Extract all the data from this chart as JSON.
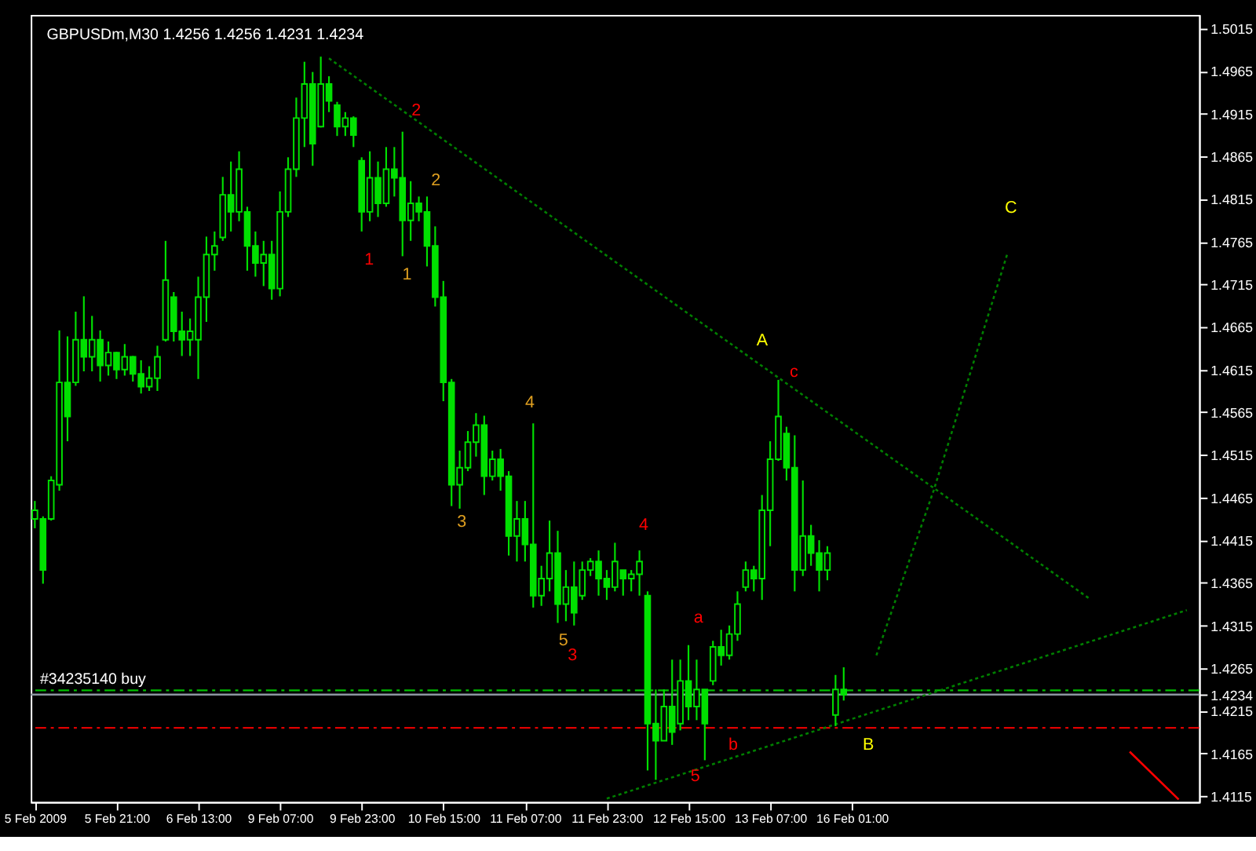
{
  "chart_data": {
    "type": "candlestick",
    "title": "GBPUSDm,M30  1.4256 1.4256 1.4231 1.4234",
    "categories": [
      "5 Feb 2009",
      null,
      null,
      null,
      null,
      null,
      null,
      null,
      null,
      null,
      "5 Feb 21:00",
      null,
      null,
      null,
      null,
      null,
      null,
      null,
      null,
      null,
      "6 Feb 13:00",
      null,
      null,
      null,
      null,
      null,
      null,
      null,
      null,
      null,
      "9 Feb 07:00",
      null,
      null,
      null,
      null,
      null,
      null,
      null,
      null,
      null,
      "9 Feb 23:00",
      null,
      null,
      null,
      null,
      null,
      null,
      null,
      null,
      null,
      "10 Feb 15:00",
      null,
      null,
      null,
      null,
      null,
      null,
      null,
      null,
      null,
      "11 Feb 07:00",
      null,
      null,
      null,
      null,
      null,
      null,
      null,
      null,
      null,
      "11 Feb 23:00",
      null,
      null,
      null,
      null,
      null,
      null,
      null,
      null,
      null,
      "12 Feb 15:00",
      null,
      null,
      null,
      null,
      null,
      null,
      null,
      null,
      null,
      "13 Feb 07:00",
      null,
      null,
      null,
      null,
      null,
      null,
      null,
      null,
      null,
      "16 Feb 01:00",
      null,
      null,
      null,
      null,
      null,
      null,
      null,
      null,
      null,
      null,
      null,
      null,
      null,
      null,
      null,
      null,
      null,
      null,
      null,
      null,
      null,
      null,
      null,
      null,
      null,
      null,
      null,
      null,
      null,
      null,
      null,
      null,
      null,
      null,
      null,
      null,
      null,
      null,
      null,
      null,
      null,
      null
    ],
    "ohlc": [
      [
        1.444,
        1.4461,
        1.4429,
        1.445
      ],
      [
        1.444,
        1.4443,
        1.4364,
        1.438
      ],
      [
        1.444,
        1.449,
        1.4438,
        1.4485
      ],
      [
        1.448,
        1.4661,
        1.4473,
        1.46
      ],
      [
        1.46,
        1.4654,
        1.4531,
        1.456
      ],
      [
        1.46,
        1.4683,
        1.4596,
        1.465
      ],
      [
        1.465,
        1.4701,
        1.4613,
        1.463
      ],
      [
        1.463,
        1.4678,
        1.4613,
        1.465
      ],
      [
        1.465,
        1.4661,
        1.4601,
        1.462
      ],
      [
        1.462,
        1.4648,
        1.4608,
        1.4635
      ],
      [
        1.4635,
        1.4636,
        1.4604,
        1.4615
      ],
      [
        1.4615,
        1.4645,
        1.4608,
        1.463
      ],
      [
        1.463,
        1.4631,
        1.4601,
        1.461
      ],
      [
        1.461,
        1.4626,
        1.4587,
        1.4595
      ],
      [
        1.4595,
        1.4619,
        1.459,
        1.4605
      ],
      [
        1.4605,
        1.4643,
        1.459,
        1.463
      ],
      [
        1.465,
        1.4766,
        1.4648,
        1.472
      ],
      [
        1.47,
        1.4706,
        1.4648,
        1.466
      ],
      [
        1.466,
        1.4683,
        1.4631,
        1.465
      ],
      [
        1.465,
        1.4675,
        1.4631,
        1.466
      ],
      [
        1.465,
        1.4724,
        1.4604,
        1.47
      ],
      [
        1.47,
        1.4771,
        1.4671,
        1.475
      ],
      [
        1.475,
        1.4777,
        1.4731,
        1.476
      ],
      [
        1.477,
        1.4841,
        1.4766,
        1.482
      ],
      [
        1.482,
        1.4859,
        1.4777,
        1.48
      ],
      [
        1.48,
        1.4871,
        1.4789,
        1.485
      ],
      [
        1.48,
        1.4806,
        1.4731,
        1.476
      ],
      [
        1.476,
        1.4777,
        1.4724,
        1.474
      ],
      [
        1.474,
        1.4766,
        1.4713,
        1.475
      ],
      [
        1.475,
        1.4766,
        1.4697,
        1.471
      ],
      [
        1.471,
        1.4824,
        1.4701,
        1.48
      ],
      [
        1.48,
        1.4864,
        1.4794,
        1.485
      ],
      [
        1.485,
        1.4934,
        1.4841,
        1.491
      ],
      [
        1.491,
        1.4976,
        1.4876,
        1.495
      ],
      [
        1.495,
        1.4964,
        1.4854,
        1.488
      ],
      [
        1.49,
        1.4982,
        1.4899,
        1.495
      ],
      [
        1.495,
        1.4959,
        1.4917,
        1.493
      ],
      [
        1.4925,
        1.4929,
        1.4889,
        1.49
      ],
      [
        1.49,
        1.4917,
        1.4889,
        1.491
      ],
      [
        1.491,
        1.4912,
        1.4876,
        1.489
      ],
      [
        1.486,
        1.4864,
        1.4777,
        1.48
      ],
      [
        1.48,
        1.4871,
        1.4789,
        1.484
      ],
      [
        1.484,
        1.4859,
        1.4794,
        1.481
      ],
      [
        1.481,
        1.4876,
        1.4806,
        1.485
      ],
      [
        1.485,
        1.4876,
        1.4818,
        1.484
      ],
      [
        1.484,
        1.4894,
        1.4748,
        1.479
      ],
      [
        1.479,
        1.4836,
        1.4766,
        1.481
      ],
      [
        1.481,
        1.4818,
        1.4789,
        1.48
      ],
      [
        1.48,
        1.4818,
        1.4736,
        1.476
      ],
      [
        1.476,
        1.4783,
        1.4689,
        1.47
      ],
      [
        1.47,
        1.4719,
        1.4578,
        1.46
      ],
      [
        1.46,
        1.4604,
        1.4455,
        1.448
      ],
      [
        1.448,
        1.452,
        1.4452,
        1.45
      ],
      [
        1.45,
        1.4543,
        1.4496,
        1.453
      ],
      [
        1.453,
        1.4564,
        1.4513,
        1.455
      ],
      [
        1.455,
        1.4561,
        1.4468,
        1.449
      ],
      [
        1.449,
        1.452,
        1.4485,
        1.451
      ],
      [
        1.451,
        1.4522,
        1.4473,
        1.449
      ],
      [
        1.449,
        1.4496,
        1.4397,
        1.442
      ],
      [
        1.442,
        1.4461,
        1.439,
        1.444
      ],
      [
        1.444,
        1.4461,
        1.439,
        1.441
      ],
      [
        1.441,
        1.4552,
        1.4336,
        1.435
      ],
      [
        1.435,
        1.4385,
        1.4338,
        1.437
      ],
      [
        1.437,
        1.4438,
        1.4355,
        1.44
      ],
      [
        1.44,
        1.4426,
        1.4318,
        1.434
      ],
      [
        1.434,
        1.438,
        1.432,
        1.436
      ],
      [
        1.436,
        1.439,
        1.4315,
        1.433
      ],
      [
        1.435,
        1.439,
        1.4345,
        1.438
      ],
      [
        1.438,
        1.4394,
        1.4373,
        1.439
      ],
      [
        1.439,
        1.4403,
        1.435,
        1.437
      ],
      [
        1.437,
        1.438,
        1.4345,
        1.436
      ],
      [
        1.436,
        1.4412,
        1.4355,
        1.439
      ],
      [
        1.438,
        1.438,
        1.435,
        1.437
      ],
      [
        1.437,
        1.438,
        1.4355,
        1.4375
      ],
      [
        1.4375,
        1.4403,
        1.435,
        1.439
      ],
      [
        1.435,
        1.4355,
        1.4145,
        1.42
      ],
      [
        1.42,
        1.424,
        1.4134,
        1.418
      ],
      [
        1.418,
        1.424,
        1.418,
        1.422
      ],
      [
        1.422,
        1.4275,
        1.4175,
        1.419
      ],
      [
        1.42,
        1.4275,
        1.4192,
        1.425
      ],
      [
        1.425,
        1.4292,
        1.4204,
        1.422
      ],
      [
        1.422,
        1.4275,
        1.4204,
        1.424
      ],
      [
        1.424,
        1.424,
        1.4157,
        1.42
      ],
      [
        1.425,
        1.4297,
        1.4245,
        1.429
      ],
      [
        1.429,
        1.431,
        1.4268,
        1.428
      ],
      [
        1.428,
        1.4315,
        1.4275,
        1.4305
      ],
      [
        1.4305,
        1.4355,
        1.4297,
        1.434
      ],
      [
        1.436,
        1.439,
        1.4355,
        1.438
      ],
      [
        1.438,
        1.4385,
        1.4355,
        1.437
      ],
      [
        1.437,
        1.4468,
        1.4345,
        1.445
      ],
      [
        1.445,
        1.4531,
        1.4408,
        1.451
      ],
      [
        1.451,
        1.4603,
        1.4508,
        1.456
      ],
      [
        1.454,
        1.4548,
        1.4485,
        1.45
      ],
      [
        1.45,
        1.4538,
        1.4355,
        1.438
      ],
      [
        1.438,
        1.4485,
        1.4373,
        1.442
      ],
      [
        1.442,
        1.4433,
        1.4385,
        1.44
      ],
      [
        1.44,
        1.4415,
        1.4355,
        1.438
      ],
      [
        1.438,
        1.4408,
        1.4368,
        1.44
      ],
      [
        1.421,
        1.4257,
        1.4197,
        1.424
      ],
      [
        1.424,
        1.4266,
        1.4227,
        1.4234
      ],
      null,
      null,
      null,
      null,
      null,
      null,
      null,
      null,
      null,
      null,
      null,
      null,
      null,
      null,
      null,
      null,
      null,
      null,
      null,
      null,
      null,
      null,
      null,
      null,
      null,
      null,
      null,
      null,
      null,
      null,
      null,
      null,
      null,
      null,
      null,
      null,
      null,
      null,
      null,
      null,
      null,
      null,
      null
    ],
    "color": "#00e000",
    "series": [
      {
        "type": "line",
        "color": "#008000",
        "line_style": "dotted",
        "values": [
          null,
          null,
          null,
          null,
          null,
          null,
          null,
          null,
          null,
          null,
          null,
          null,
          null,
          null,
          null,
          null,
          null,
          null,
          null,
          null,
          null,
          null,
          null,
          null,
          null,
          null,
          null,
          null,
          null,
          null,
          null,
          null,
          null,
          null,
          null,
          null,
          1.498,
          null,
          null,
          null,
          null,
          null,
          null,
          null,
          null,
          null,
          null,
          null,
          null,
          null,
          null,
          null,
          null,
          null,
          null,
          null,
          null,
          null,
          null,
          null,
          null,
          null,
          null,
          null,
          null,
          null,
          null,
          null,
          null,
          null,
          null,
          null,
          null,
          null,
          null,
          null,
          null,
          null,
          null,
          null,
          null,
          null,
          null,
          null,
          null,
          null,
          null,
          null,
          null,
          null,
          null,
          null,
          null,
          null,
          null,
          null,
          null,
          null,
          null,
          null,
          null,
          null,
          null,
          null,
          null,
          null,
          null,
          null,
          null,
          null,
          null,
          null,
          null,
          null,
          null,
          null,
          null,
          null,
          null,
          null,
          null,
          null,
          null,
          null,
          null,
          null,
          null,
          null,
          null,
          1.4347,
          null,
          null,
          null,
          null,
          null,
          null,
          null,
          null,
          null,
          null,
          null,
          null,
          null
        ]
      },
      {
        "type": "line",
        "color": "#008000",
        "line_style": "dotted",
        "values": [
          null,
          null,
          null,
          null,
          null,
          null,
          null,
          null,
          null,
          null,
          null,
          null,
          null,
          null,
          null,
          null,
          null,
          null,
          null,
          null,
          null,
          null,
          null,
          null,
          null,
          null,
          null,
          null,
          null,
          null,
          null,
          null,
          null,
          null,
          null,
          null,
          null,
          null,
          null,
          null,
          null,
          null,
          null,
          null,
          null,
          null,
          null,
          null,
          null,
          null,
          null,
          null,
          null,
          null,
          null,
          null,
          null,
          null,
          null,
          null,
          null,
          null,
          null,
          null,
          null,
          null,
          null,
          null,
          null,
          null,
          1.4112,
          null,
          null,
          null,
          null,
          null,
          null,
          null,
          null,
          null,
          null,
          null,
          null,
          null,
          null,
          null,
          null,
          null,
          null,
          null,
          null,
          null,
          null,
          null,
          null,
          null,
          null,
          null,
          null,
          null,
          null,
          null,
          null,
          null,
          null,
          null,
          null,
          null,
          null,
          null,
          null,
          null,
          null,
          null,
          null,
          null,
          null,
          null,
          null,
          null,
          null,
          null,
          null,
          null,
          null,
          null,
          null,
          null,
          null,
          null,
          null,
          null,
          null,
          null,
          null,
          null,
          null,
          null,
          null,
          null,
          null,
          1.4333,
          null
        ]
      },
      {
        "type": "line",
        "color": "#008000",
        "line_style": "dotted",
        "values": [
          null,
          null,
          null,
          null,
          null,
          null,
          null,
          null,
          null,
          null,
          null,
          null,
          null,
          null,
          null,
          null,
          null,
          null,
          null,
          null,
          null,
          null,
          null,
          null,
          null,
          null,
          null,
          null,
          null,
          null,
          null,
          null,
          null,
          null,
          null,
          null,
          null,
          null,
          null,
          null,
          null,
          null,
          null,
          null,
          null,
          null,
          null,
          null,
          null,
          null,
          null,
          null,
          null,
          null,
          null,
          null,
          null,
          null,
          null,
          null,
          null,
          null,
          null,
          null,
          null,
          null,
          null,
          null,
          null,
          null,
          null,
          null,
          null,
          null,
          null,
          null,
          null,
          null,
          null,
          null,
          null,
          null,
          null,
          null,
          null,
          null,
          null,
          null,
          null,
          null,
          null,
          null,
          null,
          null,
          null,
          null,
          null,
          null,
          null,
          null,
          null,
          null,
          null,
          1.428,
          null,
          null,
          null,
          null,
          null,
          null,
          1.4473,
          null,
          null,
          null,
          null,
          null,
          null,
          null,
          null,
          1.475,
          null,
          null,
          null,
          null,
          null,
          null,
          null,
          null,
          null,
          null,
          null,
          null,
          null,
          null,
          null,
          null,
          null,
          null,
          null,
          null,
          null,
          null,
          null
        ]
      },
      {
        "type": "line",
        "color": "#ff0000",
        "line_style": "solid",
        "values": [
          null,
          null,
          null,
          null,
          null,
          null,
          null,
          null,
          null,
          null,
          null,
          null,
          null,
          null,
          null,
          null,
          null,
          null,
          null,
          null,
          null,
          null,
          null,
          null,
          null,
          null,
          null,
          null,
          null,
          null,
          null,
          null,
          null,
          null,
          null,
          null,
          null,
          null,
          null,
          null,
          null,
          null,
          null,
          null,
          null,
          null,
          null,
          null,
          null,
          null,
          null,
          null,
          null,
          null,
          null,
          null,
          null,
          null,
          null,
          null,
          null,
          null,
          null,
          null,
          null,
          null,
          null,
          null,
          null,
          null,
          null,
          null,
          null,
          null,
          null,
          null,
          null,
          null,
          null,
          null,
          null,
          null,
          null,
          null,
          null,
          null,
          null,
          null,
          null,
          null,
          null,
          null,
          null,
          null,
          null,
          null,
          null,
          null,
          null,
          null,
          null,
          null,
          null,
          null,
          null,
          null,
          null,
          null,
          null,
          null,
          null,
          null,
          null,
          null,
          null,
          null,
          null,
          null,
          null,
          null,
          null,
          null,
          null,
          null,
          null,
          null,
          null,
          null,
          null,
          null,
          null,
          null,
          null,
          null,
          1.4167,
          null,
          null,
          null,
          null,
          null,
          1.4111,
          null,
          null
        ]
      }
    ],
    "ref_lines": [
      {
        "axis": "y",
        "value": 1.4239,
        "label": "#34235140 buy",
        "color": "#00c000",
        "line_style": "dashed"
      },
      {
        "axis": "y",
        "value": 1.4234,
        "label": null,
        "color": "#8c96a0",
        "line_style": "solid"
      },
      {
        "axis": "y",
        "value": 1.4195,
        "label": null,
        "color": "#e00000",
        "line_style": "dashed"
      }
    ],
    "annotations": [
      "2",
      "2",
      "1",
      "1",
      "4",
      "3",
      "4",
      "5",
      "3",
      "a",
      "5",
      "b",
      "A",
      "c",
      "C",
      "B"
    ],
    "ylim": [
      1.4108,
      1.5031
    ],
    "yticks": [
      1.4115,
      1.4165,
      1.4215,
      {
        "value": 1.4234,
        "label": "1.4234"
      },
      1.4265,
      1.4315,
      1.4365,
      1.4415,
      1.4465,
      1.4515,
      1.4565,
      1.4615,
      1.4665,
      1.4715,
      1.4765,
      1.4815,
      1.4865,
      1.4915,
      1.4965,
      1.5015
    ],
    "grid": false,
    "legend": false
  }
}
